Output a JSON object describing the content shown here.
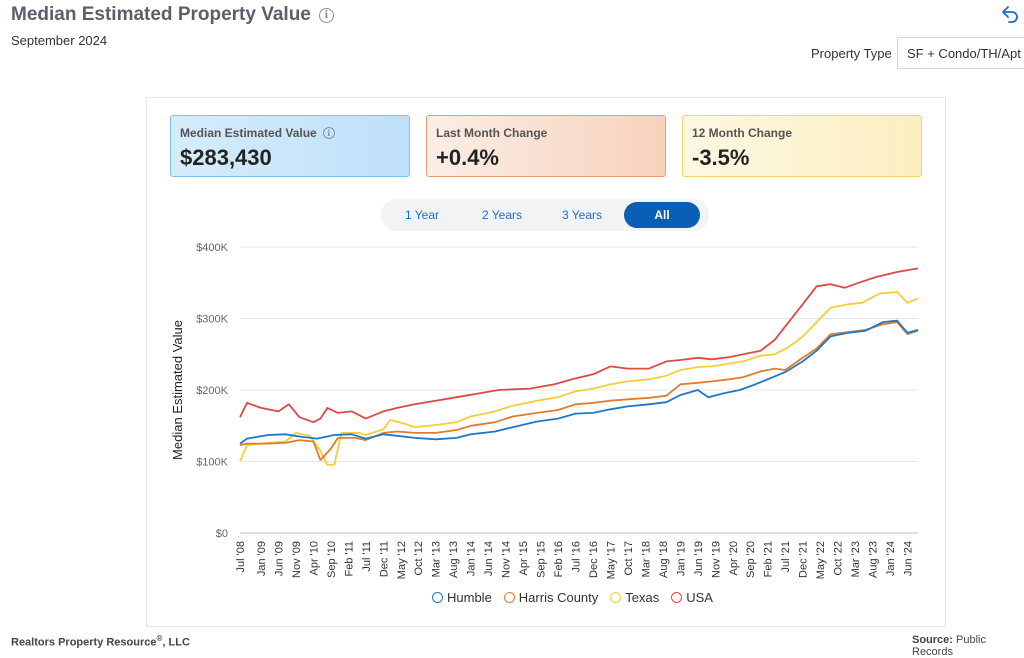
{
  "header": {
    "title": "Median Estimated Property Value",
    "subtitle": "September 2024",
    "property_type_label": "Property Type",
    "property_type_value": "SF + Condo/TH/Apt"
  },
  "stats": [
    {
      "label": "Median Estimated Value",
      "value": "$283,430"
    },
    {
      "label": "Last Month Change",
      "value": "+0.4%"
    },
    {
      "label": "12 Month Change",
      "value": "-3.5%"
    }
  ],
  "range_tabs": [
    "1 Year",
    "2 Years",
    "3 Years",
    "All"
  ],
  "active_tab": "All",
  "footer": {
    "left": "Realtors Property Resource",
    "left_reg": "®",
    "left_suffix": ", LLC",
    "right_label": "Source:",
    "right_value": "Public Records"
  },
  "colors": {
    "Humble": "#1f77c9",
    "Harris County": "#e07b2f",
    "Texas": "#f2cf3a",
    "USA": "#e04848",
    "active_tab": "#0a5fb4"
  },
  "chart_data": {
    "type": "line",
    "ylabel": "Median Estimated Value",
    "ylim": [
      0,
      400000
    ],
    "y_ticks": [
      "$0",
      "$100K",
      "$200K",
      "$300K",
      "$400K"
    ],
    "x_ticks": [
      "Jul '08",
      "Jan '09",
      "Jun '09",
      "Nov '09",
      "Apr '10",
      "Sep '10",
      "Feb '11",
      "Jul '11",
      "Dec '11",
      "May '12",
      "Oct '12",
      "Mar '13",
      "Aug '13",
      "Jan '14",
      "Jun '14",
      "Nov '14",
      "Apr '15",
      "Sep '15",
      "Feb '16",
      "Jul '16",
      "Dec '16",
      "May '17",
      "Oct '17",
      "Mar '18",
      "Aug '18",
      "Jan '19",
      "Jun '19",
      "Nov '19",
      "Apr '20",
      "Sep '20",
      "Feb '21",
      "Jul '21",
      "Dec '21",
      "May '22",
      "Oct '22",
      "Mar '23",
      "Aug '23",
      "Jan '24",
      "Jun '24"
    ],
    "x_start": "2008-07",
    "x_end": "2024-09",
    "grid": true,
    "legend_position": "bottom",
    "series": [
      {
        "name": "Humble",
        "points": [
          [
            "2008-07",
            125000
          ],
          [
            "2008-09",
            132000
          ],
          [
            "2009-03",
            137000
          ],
          [
            "2009-08",
            138000
          ],
          [
            "2009-12",
            135000
          ],
          [
            "2010-05",
            132000
          ],
          [
            "2010-10",
            137000
          ],
          [
            "2011-03",
            138000
          ],
          [
            "2011-07",
            132000
          ],
          [
            "2011-12",
            138000
          ],
          [
            "2012-04",
            136000
          ],
          [
            "2012-09",
            133000
          ],
          [
            "2013-03",
            131000
          ],
          [
            "2013-09",
            133000
          ],
          [
            "2014-01",
            138000
          ],
          [
            "2014-08",
            142000
          ],
          [
            "2015-01",
            148000
          ],
          [
            "2015-08",
            156000
          ],
          [
            "2016-02",
            160000
          ],
          [
            "2016-07",
            167000
          ],
          [
            "2016-12",
            168000
          ],
          [
            "2017-05",
            173000
          ],
          [
            "2017-10",
            177000
          ],
          [
            "2018-04",
            180000
          ],
          [
            "2018-09",
            183000
          ],
          [
            "2019-01",
            193000
          ],
          [
            "2019-06",
            200000
          ],
          [
            "2019-09",
            190000
          ],
          [
            "2020-01",
            195000
          ],
          [
            "2020-06",
            200000
          ],
          [
            "2020-10",
            207000
          ],
          [
            "2021-02",
            215000
          ],
          [
            "2021-07",
            225000
          ],
          [
            "2021-12",
            240000
          ],
          [
            "2022-04",
            255000
          ],
          [
            "2022-08",
            275000
          ],
          [
            "2023-01",
            280000
          ],
          [
            "2023-06",
            283000
          ],
          [
            "2023-11",
            295000
          ],
          [
            "2024-03",
            297000
          ],
          [
            "2024-06",
            280000
          ],
          [
            "2024-09",
            284000
          ]
        ]
      },
      {
        "name": "Harris County",
        "points": [
          [
            "2008-07",
            123000
          ],
          [
            "2008-09",
            125000
          ],
          [
            "2009-03",
            125000
          ],
          [
            "2009-08",
            126000
          ],
          [
            "2009-12",
            130000
          ],
          [
            "2010-04",
            128000
          ],
          [
            "2010-06",
            102000
          ],
          [
            "2010-09",
            118000
          ],
          [
            "2010-11",
            133000
          ],
          [
            "2011-04",
            133000
          ],
          [
            "2011-07",
            130000
          ],
          [
            "2011-12",
            140000
          ],
          [
            "2012-04",
            142000
          ],
          [
            "2012-09",
            140000
          ],
          [
            "2013-03",
            140000
          ],
          [
            "2013-09",
            144000
          ],
          [
            "2014-01",
            150000
          ],
          [
            "2014-08",
            155000
          ],
          [
            "2015-01",
            163000
          ],
          [
            "2015-08",
            168000
          ],
          [
            "2016-02",
            172000
          ],
          [
            "2016-07",
            180000
          ],
          [
            "2016-12",
            182000
          ],
          [
            "2017-05",
            185000
          ],
          [
            "2017-10",
            187000
          ],
          [
            "2018-04",
            189000
          ],
          [
            "2018-09",
            192000
          ],
          [
            "2019-01",
            208000
          ],
          [
            "2019-06",
            210000
          ],
          [
            "2019-10",
            212000
          ],
          [
            "2020-03",
            215000
          ],
          [
            "2020-07",
            218000
          ],
          [
            "2020-12",
            226000
          ],
          [
            "2021-04",
            230000
          ],
          [
            "2021-07",
            228000
          ],
          [
            "2021-12",
            245000
          ],
          [
            "2022-04",
            258000
          ],
          [
            "2022-08",
            278000
          ],
          [
            "2023-01",
            281000
          ],
          [
            "2023-06",
            284000
          ],
          [
            "2023-11",
            292000
          ],
          [
            "2024-03",
            295000
          ],
          [
            "2024-06",
            278000
          ],
          [
            "2024-09",
            283000
          ]
        ]
      },
      {
        "name": "Texas",
        "points": [
          [
            "2008-07",
            100000
          ],
          [
            "2008-09",
            123000
          ],
          [
            "2009-03",
            126000
          ],
          [
            "2009-08",
            128000
          ],
          [
            "2009-11",
            140000
          ],
          [
            "2010-03",
            136000
          ],
          [
            "2010-06",
            115000
          ],
          [
            "2010-08",
            95000
          ],
          [
            "2010-10",
            96000
          ],
          [
            "2010-12",
            140000
          ],
          [
            "2011-05",
            140000
          ],
          [
            "2011-07",
            137000
          ],
          [
            "2011-12",
            145000
          ],
          [
            "2012-02",
            158000
          ],
          [
            "2012-06",
            153000
          ],
          [
            "2012-09",
            148000
          ],
          [
            "2013-03",
            151000
          ],
          [
            "2013-09",
            155000
          ],
          [
            "2014-01",
            163000
          ],
          [
            "2014-08",
            170000
          ],
          [
            "2015-01",
            178000
          ],
          [
            "2015-08",
            185000
          ],
          [
            "2016-02",
            190000
          ],
          [
            "2016-07",
            198000
          ],
          [
            "2016-12",
            202000
          ],
          [
            "2017-05",
            208000
          ],
          [
            "2017-10",
            212000
          ],
          [
            "2018-04",
            215000
          ],
          [
            "2018-09",
            220000
          ],
          [
            "2019-01",
            228000
          ],
          [
            "2019-06",
            232000
          ],
          [
            "2019-10",
            233000
          ],
          [
            "2020-03",
            237000
          ],
          [
            "2020-07",
            240000
          ],
          [
            "2020-12",
            248000
          ],
          [
            "2021-04",
            250000
          ],
          [
            "2021-08",
            260000
          ],
          [
            "2021-12",
            275000
          ],
          [
            "2022-04",
            295000
          ],
          [
            "2022-08",
            315000
          ],
          [
            "2023-01",
            320000
          ],
          [
            "2023-05",
            322000
          ],
          [
            "2023-10",
            335000
          ],
          [
            "2024-03",
            337000
          ],
          [
            "2024-06",
            322000
          ],
          [
            "2024-09",
            328000
          ]
        ]
      },
      {
        "name": "USA",
        "points": [
          [
            "2008-07",
            162000
          ],
          [
            "2008-09",
            182000
          ],
          [
            "2009-01",
            175000
          ],
          [
            "2009-06",
            170000
          ],
          [
            "2009-09",
            180000
          ],
          [
            "2009-12",
            162000
          ],
          [
            "2010-04",
            155000
          ],
          [
            "2010-06",
            160000
          ],
          [
            "2010-08",
            175000
          ],
          [
            "2010-11",
            168000
          ],
          [
            "2011-03",
            170000
          ],
          [
            "2011-07",
            160000
          ],
          [
            "2011-12",
            170000
          ],
          [
            "2012-04",
            175000
          ],
          [
            "2012-09",
            180000
          ],
          [
            "2013-03",
            185000
          ],
          [
            "2013-09",
            190000
          ],
          [
            "2014-03",
            195000
          ],
          [
            "2014-09",
            200000
          ],
          [
            "2015-06",
            202000
          ],
          [
            "2016-01",
            208000
          ],
          [
            "2016-06",
            215000
          ],
          [
            "2016-12",
            222000
          ],
          [
            "2017-05",
            233000
          ],
          [
            "2017-10",
            230000
          ],
          [
            "2018-04",
            230000
          ],
          [
            "2018-09",
            240000
          ],
          [
            "2019-01",
            242000
          ],
          [
            "2019-06",
            245000
          ],
          [
            "2019-10",
            243000
          ],
          [
            "2020-03",
            246000
          ],
          [
            "2020-07",
            250000
          ],
          [
            "2020-12",
            255000
          ],
          [
            "2021-04",
            270000
          ],
          [
            "2021-08",
            295000
          ],
          [
            "2021-12",
            320000
          ],
          [
            "2022-04",
            345000
          ],
          [
            "2022-08",
            348000
          ],
          [
            "2022-12",
            343000
          ],
          [
            "2023-04",
            350000
          ],
          [
            "2023-09",
            358000
          ],
          [
            "2024-03",
            365000
          ],
          [
            "2024-09",
            370000
          ]
        ]
      }
    ]
  }
}
